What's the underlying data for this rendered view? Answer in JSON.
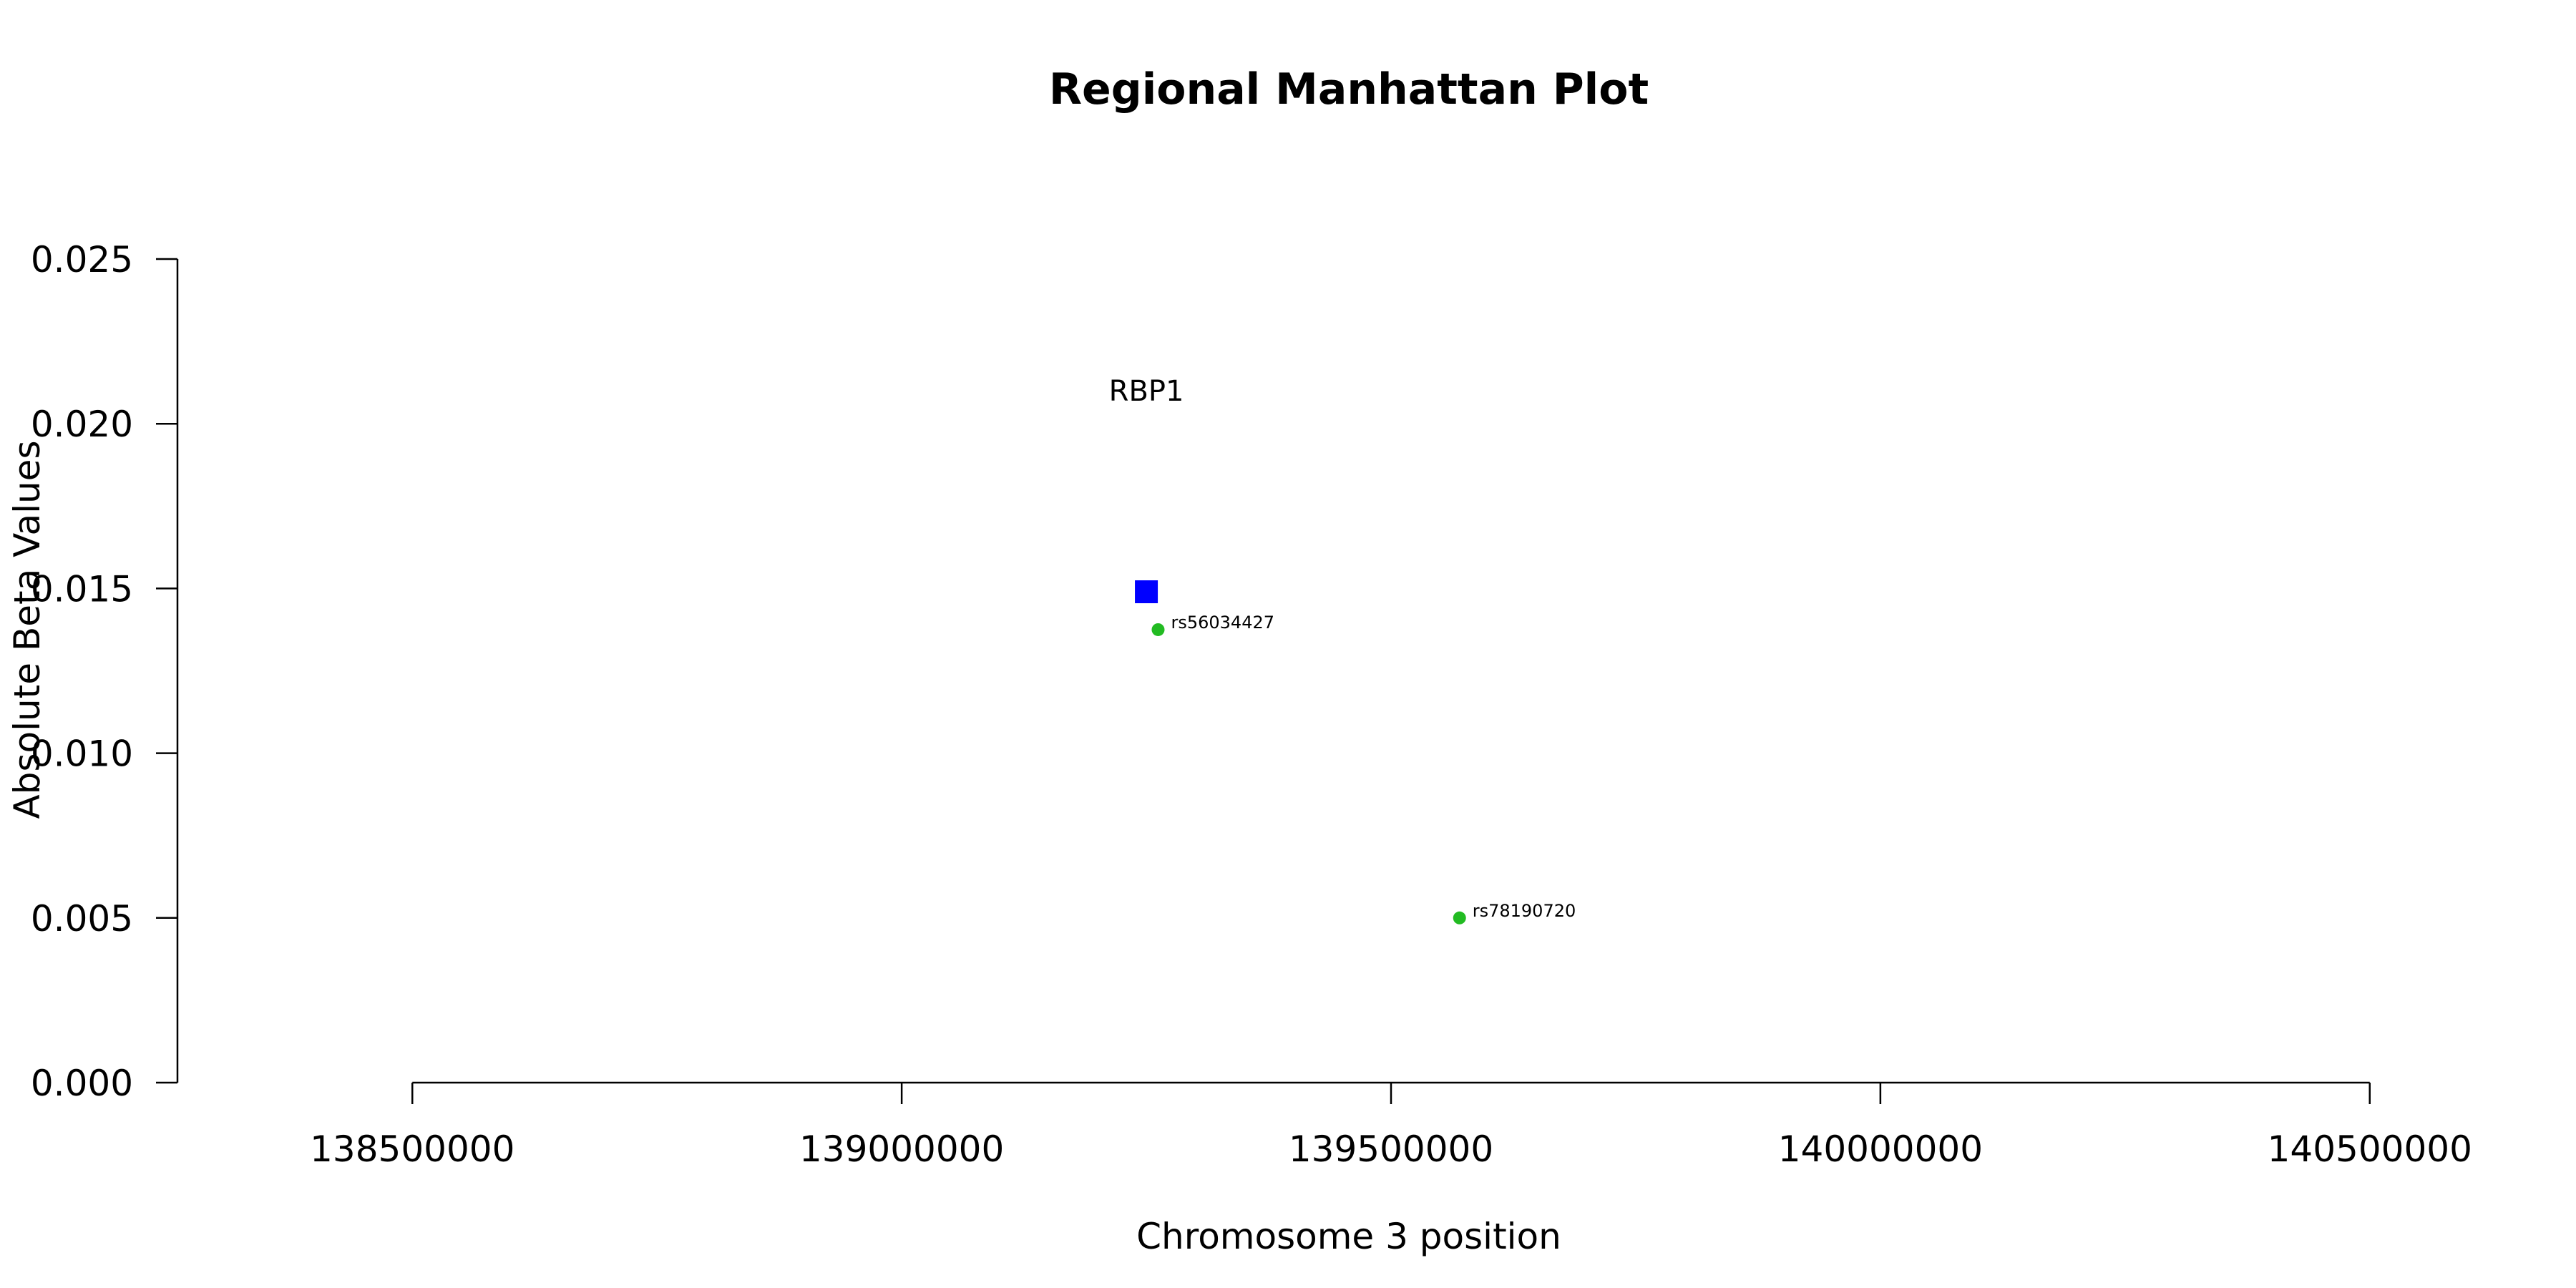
{
  "chart_data": {
    "type": "scatter",
    "title": "Regional Manhattan Plot",
    "xlabel": "Chromosome 3 position",
    "ylabel": "Absolute Beta Values",
    "xlim": [
      138260000,
      140740000
    ],
    "ylim": [
      0,
      0.025
    ],
    "x_ticks": [
      138500000,
      139000000,
      139500000,
      140000000,
      140500000
    ],
    "x_tick_labels": [
      "138500000",
      "139000000",
      "139500000",
      "140000000",
      "140500000"
    ],
    "y_ticks": [
      0,
      0.005,
      0.01,
      0.015,
      0.02,
      0.025
    ],
    "y_tick_labels": [
      "0.000",
      "0.005",
      "0.010",
      "0.015",
      "0.020",
      "0.025"
    ],
    "grid": false,
    "gene": {
      "name": "RBP1",
      "x": 139250000,
      "y": 0.0149,
      "label_y": 0.021,
      "marker": "square",
      "color": "#0000ff"
    },
    "snps": [
      {
        "id": "rs56034427",
        "x": 139262000,
        "y": 0.01375,
        "color": "#22bb22"
      },
      {
        "id": "rs78190720",
        "x": 139570000,
        "y": 0.005,
        "color": "#22bb22"
      }
    ]
  }
}
